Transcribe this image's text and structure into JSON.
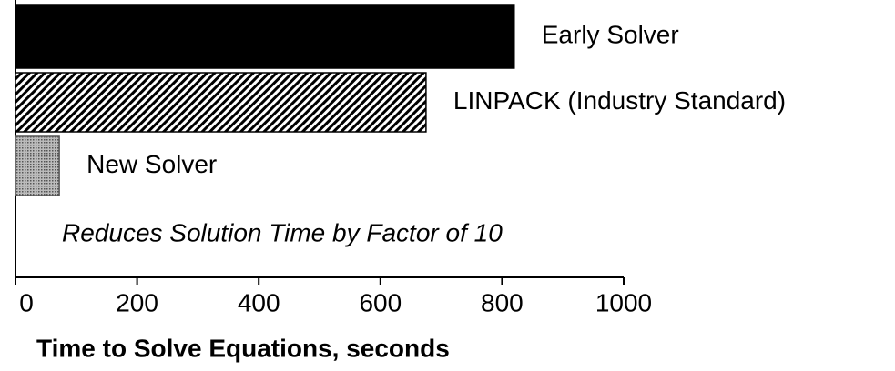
{
  "chart_data": {
    "type": "hbar",
    "categories": [
      "Early Solver",
      "LINPACK (Industry Standard)",
      "New Solver"
    ],
    "values": [
      820,
      675,
      72
    ],
    "colors": [
      "#000000",
      "#000000",
      "#555555"
    ],
    "patterns": [
      "solid",
      "hatch",
      "dots"
    ],
    "annotation": "Reduces Solution Time by Factor of 10",
    "xlabel": "Time to Solve Equations, seconds",
    "xlim": [
      0,
      1000
    ],
    "xticks": [
      0,
      200,
      400,
      600,
      800,
      1000
    ]
  }
}
